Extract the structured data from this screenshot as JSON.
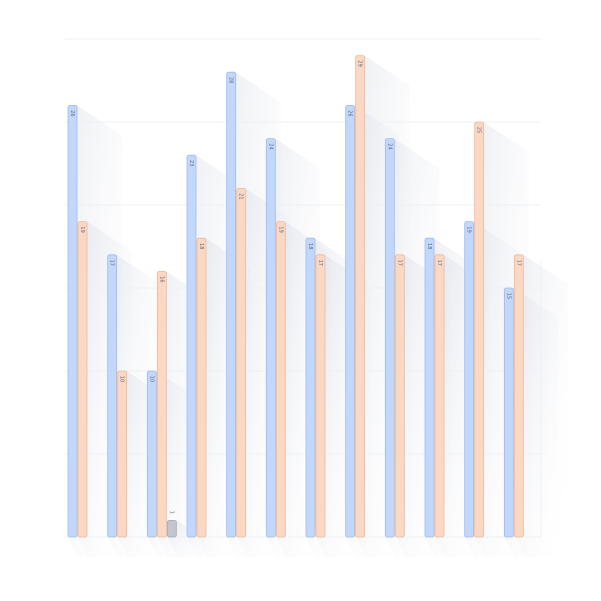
{
  "chart_data": {
    "type": "bar",
    "categories": [
      null,
      null,
      null,
      null,
      null,
      null,
      null,
      null,
      null,
      null,
      null,
      null
    ],
    "series": [
      {
        "color": "#c3d7fa",
        "values": [
          26,
          17,
          10,
          23,
          28,
          24,
          18,
          26,
          24,
          18,
          19,
          15
        ]
      },
      {
        "color": "#fbd8c3",
        "values": [
          19,
          10,
          16,
          18,
          21,
          19,
          17,
          29,
          17,
          17,
          25,
          17
        ]
      },
      {
        "color": "#c4c4cc",
        "values": [
          null,
          null,
          1,
          null,
          null,
          null,
          null,
          null,
          null,
          null,
          null,
          null
        ]
      }
    ],
    "ylim": [
      0,
      30
    ],
    "yticks": [
      0,
      5,
      10,
      15,
      20,
      25,
      30
    ],
    "grid": true
  }
}
